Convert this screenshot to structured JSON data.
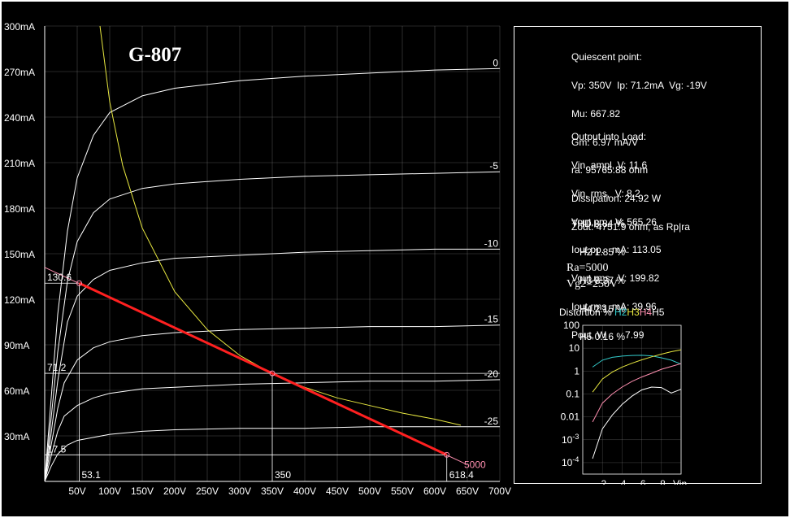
{
  "chart_data": {
    "type": "line",
    "title": "G-807",
    "y_ticks": [
      "300mA",
      "270mA",
      "240mA",
      "210mA",
      "180mA",
      "150mA",
      "120mA",
      "90mA",
      "60mA",
      "30mA"
    ],
    "x_ticks": [
      "50V",
      "100V",
      "150V",
      "200V",
      "250V",
      "300V",
      "350V",
      "400V",
      "450V",
      "500V",
      "550V",
      "600V",
      "650V",
      "700V"
    ],
    "xlim": [
      0,
      700
    ],
    "ylim": [
      0,
      300
    ],
    "grid": true,
    "plate_curves": [
      {
        "vg": "0",
        "points": [
          [
            0,
            0
          ],
          [
            10,
            55
          ],
          [
            20,
            110
          ],
          [
            35,
            165
          ],
          [
            50,
            200
          ],
          [
            75,
            228
          ],
          [
            100,
            243
          ],
          [
            150,
            254
          ],
          [
            200,
            259
          ],
          [
            300,
            264
          ],
          [
            400,
            267
          ],
          [
            500,
            269
          ],
          [
            600,
            271
          ],
          [
            700,
            272
          ]
        ]
      },
      {
        "vg": "-5",
        "points": [
          [
            0,
            0
          ],
          [
            10,
            42
          ],
          [
            20,
            85
          ],
          [
            35,
            132
          ],
          [
            50,
            158
          ],
          [
            75,
            177
          ],
          [
            100,
            186
          ],
          [
            150,
            193
          ],
          [
            200,
            196
          ],
          [
            300,
            199
          ],
          [
            400,
            201
          ],
          [
            500,
            202
          ],
          [
            600,
            203
          ],
          [
            700,
            204
          ]
        ]
      },
      {
        "vg": "-10",
        "points": [
          [
            0,
            0
          ],
          [
            10,
            32
          ],
          [
            20,
            66
          ],
          [
            35,
            105
          ],
          [
            50,
            122
          ],
          [
            75,
            133
          ],
          [
            100,
            139
          ],
          [
            150,
            144
          ],
          [
            200,
            147
          ],
          [
            300,
            149
          ],
          [
            400,
            151
          ],
          [
            500,
            152
          ],
          [
            600,
            153
          ],
          [
            700,
            153
          ]
        ]
      },
      {
        "vg": "-15",
        "points": [
          [
            0,
            0
          ],
          [
            10,
            24
          ],
          [
            20,
            48
          ],
          [
            30,
            65
          ],
          [
            50,
            80
          ],
          [
            75,
            88
          ],
          [
            100,
            92
          ],
          [
            150,
            96
          ],
          [
            200,
            98
          ],
          [
            300,
            100
          ],
          [
            400,
            101
          ],
          [
            500,
            102
          ],
          [
            600,
            102
          ],
          [
            700,
            103
          ]
        ]
      },
      {
        "vg": "-20",
        "points": [
          [
            0,
            0
          ],
          [
            10,
            17
          ],
          [
            20,
            33
          ],
          [
            30,
            43
          ],
          [
            50,
            50
          ],
          [
            75,
            55
          ],
          [
            100,
            58
          ],
          [
            150,
            61
          ],
          [
            200,
            62
          ],
          [
            300,
            64
          ],
          [
            400,
            65
          ],
          [
            500,
            66
          ],
          [
            600,
            66
          ],
          [
            700,
            67
          ]
        ]
      },
      {
        "vg": "-25",
        "points": [
          [
            0,
            0
          ],
          [
            10,
            10
          ],
          [
            20,
            18
          ],
          [
            35,
            24
          ],
          [
            50,
            27
          ],
          [
            75,
            29
          ],
          [
            100,
            31
          ],
          [
            150,
            33
          ],
          [
            200,
            34
          ],
          [
            300,
            35
          ],
          [
            400,
            35
          ],
          [
            500,
            36
          ],
          [
            600,
            36
          ],
          [
            700,
            36
          ]
        ]
      }
    ],
    "curve_labels": [
      "0",
      "-5",
      "-10",
      "-15",
      "-20",
      "-25"
    ],
    "dissipation_curve": {
      "watts": 25,
      "points": [
        [
          85,
          300
        ],
        [
          100,
          250
        ],
        [
          120,
          208
        ],
        [
          150,
          167
        ],
        [
          200,
          125
        ],
        [
          250,
          100
        ],
        [
          300,
          83
        ],
        [
          350,
          71
        ],
        [
          400,
          62
        ],
        [
          450,
          55
        ],
        [
          500,
          50
        ],
        [
          550,
          45
        ],
        [
          600,
          41
        ],
        [
          640,
          37
        ]
      ]
    },
    "load_line": {
      "label": "5000",
      "from": [
        0,
        141
      ],
      "to": [
        650,
        11
      ]
    },
    "op_points": [
      {
        "label": "130.6",
        "x": 53.1,
        "y": 130.6
      },
      {
        "label": "71.2",
        "x": 350,
        "y": 71.2
      },
      {
        "label": "17.5",
        "x": 618.4,
        "y": 17.5
      }
    ],
    "x_markers": [
      "53.1",
      "350",
      "618.4"
    ]
  },
  "panel": {
    "quiescent": [
      "Quiescent point:",
      "Vp: 350V  Ip: 71.2mA  Vg: -19V",
      "Mu: 667.82",
      "Gm: 6.97 mA/V",
      "ra: 95765.88 ohm",
      "Dissipation: 24.92 W",
      "Zout: 4751.9 ohm, as Rp|ra"
    ],
    "output": [
      "Output into Load:",
      "Vin, ampl, V: 11.6",
      "Vin, rms,  V: 8.2",
      "Vout,pp,   V: 565.26",
      "Iout,pp.   mA: 113.05",
      "Vout,rms   V: 199.82",
      "Iout,rms  mA: 39.96",
      "Pout, W       7.99"
    ],
    "thd": [
      "THD 8.84 %",
      "   H2 1.85 %",
      "   H3 8.37 %",
      "   H4 2.15 %",
      "   H5 0.16 %"
    ],
    "ra": "Ra=5000",
    "vg2": "Vg2=250V"
  },
  "distortion": {
    "title": "Distortion % ",
    "labels": [
      "H2",
      "H3",
      "H4",
      "H5"
    ],
    "colors": {
      "H2": "#33cccc",
      "H3": "#e8e840",
      "H4": "#ff8fb0",
      "H5": "#ffffff"
    },
    "y_ticks": [
      "100",
      "10",
      "1",
      "0.1",
      "0.01",
      "10^-3",
      "10^-4"
    ],
    "x_ticks": [
      ".2",
      ".4",
      ".6",
      ".8",
      "Vin"
    ],
    "series": [
      {
        "name": "H2",
        "values": [
          [
            0.1,
            1.5
          ],
          [
            0.2,
            3
          ],
          [
            0.3,
            4
          ],
          [
            0.4,
            4.5
          ],
          [
            0.5,
            4.8
          ],
          [
            0.6,
            4.9
          ],
          [
            0.7,
            4.6
          ],
          [
            0.8,
            3.8
          ],
          [
            0.9,
            3
          ],
          [
            1.0,
            2
          ]
        ]
      },
      {
        "name": "H3",
        "values": [
          [
            0.1,
            0.12
          ],
          [
            0.2,
            0.45
          ],
          [
            0.3,
            0.9
          ],
          [
            0.4,
            1.5
          ],
          [
            0.5,
            2.2
          ],
          [
            0.6,
            3.1
          ],
          [
            0.7,
            4.2
          ],
          [
            0.8,
            5.5
          ],
          [
            0.9,
            7
          ],
          [
            1.0,
            8.5
          ]
        ]
      },
      {
        "name": "H4",
        "values": [
          [
            0.1,
            0.006
          ],
          [
            0.2,
            0.04
          ],
          [
            0.3,
            0.1
          ],
          [
            0.4,
            0.2
          ],
          [
            0.5,
            0.35
          ],
          [
            0.6,
            0.55
          ],
          [
            0.7,
            0.8
          ],
          [
            0.8,
            1.2
          ],
          [
            0.9,
            1.6
          ],
          [
            1.0,
            2.1
          ]
        ]
      },
      {
        "name": "H5",
        "values": [
          [
            0.1,
            0.00015
          ],
          [
            0.2,
            0.003
          ],
          [
            0.3,
            0.012
          ],
          [
            0.4,
            0.035
          ],
          [
            0.5,
            0.08
          ],
          [
            0.6,
            0.15
          ],
          [
            0.7,
            0.2
          ],
          [
            0.8,
            0.19
          ],
          [
            0.9,
            0.11
          ],
          [
            1.0,
            0.16
          ]
        ]
      }
    ]
  },
  "colors": {
    "curves": "#ffffff",
    "dissipation": "#e8e840",
    "load": "#ff2020",
    "grid": "#8a8a8a",
    "load_label": "#ff8fb0"
  }
}
